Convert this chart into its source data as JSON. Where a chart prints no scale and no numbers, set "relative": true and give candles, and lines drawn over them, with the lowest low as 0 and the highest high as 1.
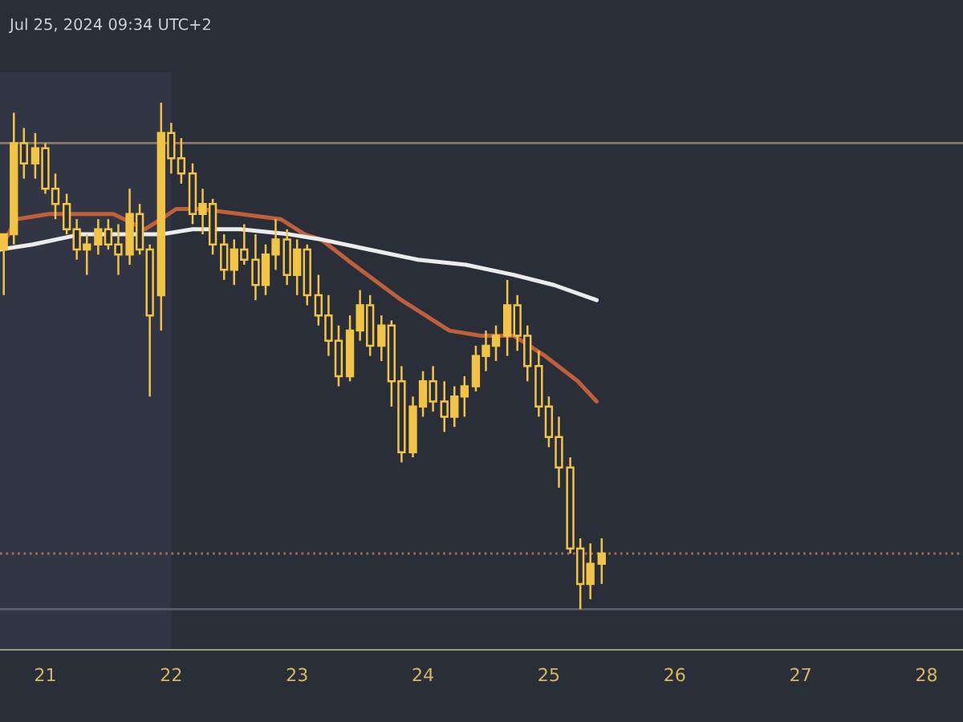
{
  "chart_data": {
    "type": "candlestick",
    "relative": true,
    "annotations": [
      "Jul 25, 2024 09:34 UTC+2"
    ],
    "xlim": [
      20.64,
      28.29
    ],
    "xticks": [
      21,
      22,
      23,
      24,
      25,
      26,
      27,
      28
    ],
    "grid": false,
    "bands": [
      {
        "axis": "x",
        "from": 20.64,
        "to": 22.0,
        "color": "#323644"
      }
    ],
    "ref_lines": [
      {
        "axis": "y",
        "value": 0.92,
        "color": "#8a7a66"
      },
      {
        "axis": "y",
        "value": 0.11,
        "color": "#a0704a",
        "line_style": "dotted"
      },
      {
        "axis": "y",
        "value": 0.0,
        "color": "#5a5e6a"
      }
    ],
    "series": [
      {
        "color": "#f2c445",
        "x": [
          20.67,
          20.75,
          20.83,
          20.92,
          21.0,
          21.08,
          21.17,
          21.25,
          21.33,
          21.42,
          21.5,
          21.58,
          21.67,
          21.75,
          21.83,
          21.92,
          22.0,
          22.08,
          22.17,
          22.25,
          22.33,
          22.42,
          22.5,
          22.58,
          22.67,
          22.75,
          22.83,
          22.92,
          23.0,
          23.08,
          23.17,
          23.25,
          23.33,
          23.42,
          23.5,
          23.58,
          23.67,
          23.75,
          23.83,
          23.92,
          24.0,
          24.08,
          24.17,
          24.25,
          24.33,
          24.42,
          24.5,
          24.58,
          24.67,
          24.75,
          24.83,
          24.92,
          25.0,
          25.08,
          25.17,
          25.25,
          25.33,
          25.42
        ],
        "ohlc": [
          [
            0.71,
            0.74,
            0.62,
            0.74
          ],
          [
            0.74,
            0.98,
            0.72,
            0.92
          ],
          [
            0.92,
            0.95,
            0.85,
            0.88
          ],
          [
            0.88,
            0.94,
            0.85,
            0.91
          ],
          [
            0.91,
            0.92,
            0.82,
            0.83
          ],
          [
            0.83,
            0.86,
            0.77,
            0.8
          ],
          [
            0.8,
            0.82,
            0.74,
            0.75
          ],
          [
            0.75,
            0.77,
            0.69,
            0.71
          ],
          [
            0.71,
            0.74,
            0.66,
            0.72
          ],
          [
            0.72,
            0.77,
            0.7,
            0.75
          ],
          [
            0.75,
            0.77,
            0.71,
            0.72
          ],
          [
            0.72,
            0.76,
            0.66,
            0.7
          ],
          [
            0.7,
            0.83,
            0.68,
            0.78
          ],
          [
            0.78,
            0.8,
            0.7,
            0.71
          ],
          [
            0.71,
            0.72,
            0.42,
            0.58
          ],
          [
            0.62,
            1.0,
            0.55,
            0.94
          ],
          [
            0.94,
            0.96,
            0.86,
            0.89
          ],
          [
            0.89,
            0.93,
            0.84,
            0.86
          ],
          [
            0.86,
            0.88,
            0.76,
            0.78
          ],
          [
            0.78,
            0.83,
            0.74,
            0.8
          ],
          [
            0.8,
            0.81,
            0.7,
            0.72
          ],
          [
            0.72,
            0.74,
            0.65,
            0.67
          ],
          [
            0.67,
            0.73,
            0.64,
            0.71
          ],
          [
            0.71,
            0.76,
            0.68,
            0.69
          ],
          [
            0.69,
            0.74,
            0.61,
            0.64
          ],
          [
            0.64,
            0.72,
            0.62,
            0.7
          ],
          [
            0.7,
            0.77,
            0.67,
            0.73
          ],
          [
            0.73,
            0.75,
            0.64,
            0.66
          ],
          [
            0.66,
            0.73,
            0.62,
            0.71
          ],
          [
            0.71,
            0.72,
            0.6,
            0.62
          ],
          [
            0.62,
            0.66,
            0.56,
            0.58
          ],
          [
            0.58,
            0.62,
            0.5,
            0.53
          ],
          [
            0.53,
            0.56,
            0.44,
            0.46
          ],
          [
            0.46,
            0.58,
            0.45,
            0.55
          ],
          [
            0.55,
            0.63,
            0.53,
            0.6
          ],
          [
            0.6,
            0.62,
            0.5,
            0.52
          ],
          [
            0.52,
            0.58,
            0.49,
            0.56
          ],
          [
            0.56,
            0.57,
            0.4,
            0.45
          ],
          [
            0.45,
            0.48,
            0.29,
            0.31
          ],
          [
            0.31,
            0.42,
            0.3,
            0.4
          ],
          [
            0.4,
            0.47,
            0.38,
            0.45
          ],
          [
            0.45,
            0.48,
            0.39,
            0.41
          ],
          [
            0.41,
            0.45,
            0.35,
            0.38
          ],
          [
            0.38,
            0.44,
            0.36,
            0.42
          ],
          [
            0.42,
            0.46,
            0.38,
            0.44
          ],
          [
            0.44,
            0.52,
            0.43,
            0.5
          ],
          [
            0.5,
            0.55,
            0.47,
            0.52
          ],
          [
            0.52,
            0.56,
            0.49,
            0.54
          ],
          [
            0.54,
            0.65,
            0.5,
            0.6
          ],
          [
            0.6,
            0.62,
            0.51,
            0.54
          ],
          [
            0.54,
            0.56,
            0.45,
            0.48
          ],
          [
            0.48,
            0.51,
            0.38,
            0.4
          ],
          [
            0.4,
            0.42,
            0.32,
            0.34
          ],
          [
            0.34,
            0.38,
            0.24,
            0.28
          ],
          [
            0.28,
            0.3,
            0.11,
            0.12
          ],
          [
            0.12,
            0.14,
            0.0,
            0.05
          ],
          [
            0.05,
            0.13,
            0.02,
            0.09
          ],
          [
            0.09,
            0.14,
            0.05,
            0.11
          ]
        ]
      },
      {
        "type": "line",
        "color": "#c0603a",
        "x": [
          20.64,
          20.77,
          21.03,
          21.28,
          21.54,
          21.79,
          21.92,
          22.04,
          22.24,
          22.55,
          22.87,
          23.06,
          23.19,
          23.45,
          23.83,
          24.21,
          24.46,
          24.72,
          24.97,
          25.23,
          25.38
        ],
        "values": [
          0.71,
          0.77,
          0.78,
          0.78,
          0.78,
          0.75,
          0.77,
          0.79,
          0.79,
          0.78,
          0.77,
          0.74,
          0.73,
          0.68,
          0.61,
          0.55,
          0.54,
          0.54,
          0.5,
          0.45,
          0.41
        ]
      },
      {
        "type": "line",
        "color": "#ececec",
        "x": [
          20.64,
          20.9,
          21.28,
          21.66,
          21.92,
          22.17,
          22.55,
          22.94,
          23.19,
          23.57,
          23.96,
          24.34,
          24.72,
          25.04,
          25.38
        ],
        "values": [
          0.71,
          0.72,
          0.74,
          0.74,
          0.74,
          0.75,
          0.75,
          0.74,
          0.73,
          0.71,
          0.69,
          0.68,
          0.66,
          0.64,
          0.61
        ]
      }
    ]
  }
}
